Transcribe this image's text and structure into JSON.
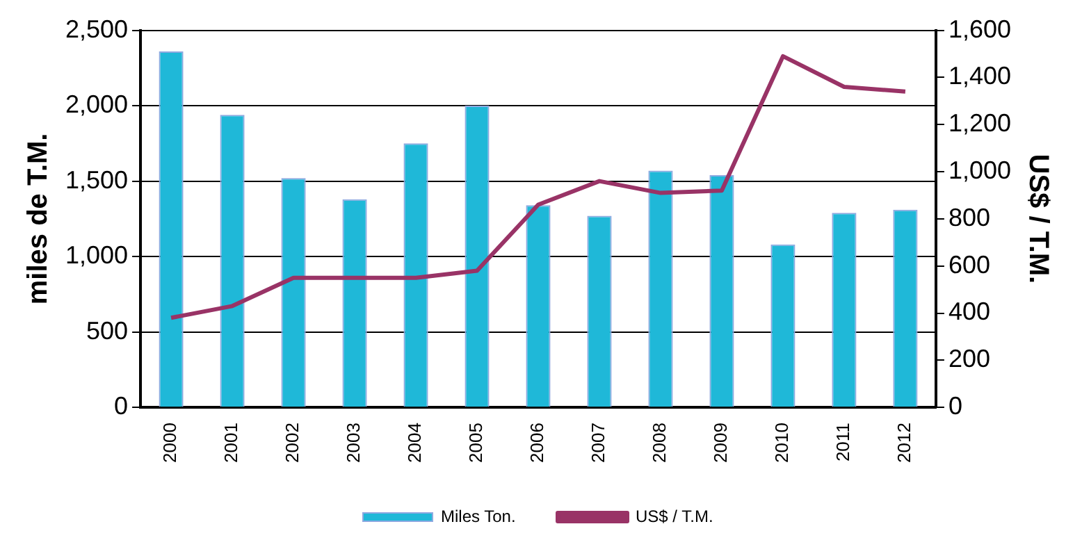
{
  "chart_data": {
    "type": "bar",
    "ylabel": "miles de T.M.",
    "y2label": "US$ / T.M.",
    "categories": [
      "2000",
      "2001",
      "2002",
      "2003",
      "2004",
      "2005",
      "2006",
      "2007",
      "2008",
      "2009",
      "2010",
      "2011",
      "2012"
    ],
    "series": [
      {
        "name": "Miles Ton.",
        "color": "#1fb8d8",
        "values": [
          2360,
          1940,
          1520,
          1380,
          1750,
          2000,
          1340,
          1270,
          1570,
          1540,
          1080,
          1290,
          1310
        ]
      },
      {
        "name": "US$ / T.M.",
        "type": "line",
        "axis": "y2",
        "color": "#993366",
        "values": [
          380,
          430,
          550,
          550,
          550,
          580,
          860,
          960,
          910,
          920,
          1490,
          1360,
          1340
        ]
      }
    ],
    "ylim": [
      0,
      2500
    ],
    "yticks": [
      {
        "value": 0,
        "label": "0"
      },
      {
        "value": 500,
        "label": "500"
      },
      {
        "value": 1000,
        "label": "1,000"
      },
      {
        "value": 1500,
        "label": "1,500"
      },
      {
        "value": 2000,
        "label": "2,000"
      },
      {
        "value": 2500,
        "label": "2,500"
      }
    ],
    "y2lim": [
      0,
      1600
    ],
    "y2ticks": [
      {
        "value": 0,
        "label": "0"
      },
      {
        "value": 200,
        "label": "200"
      },
      {
        "value": 400,
        "label": "400"
      },
      {
        "value": 600,
        "label": "600"
      },
      {
        "value": 800,
        "label": "800"
      },
      {
        "value": 1000,
        "label": "1,000"
      },
      {
        "value": 1200,
        "label": "1,200"
      },
      {
        "value": 1400,
        "label": "1,400"
      },
      {
        "value": 1600,
        "label": "1,600"
      }
    ],
    "grid": "y",
    "legend": "bottom",
    "marker": "none",
    "line_style": "solid"
  }
}
